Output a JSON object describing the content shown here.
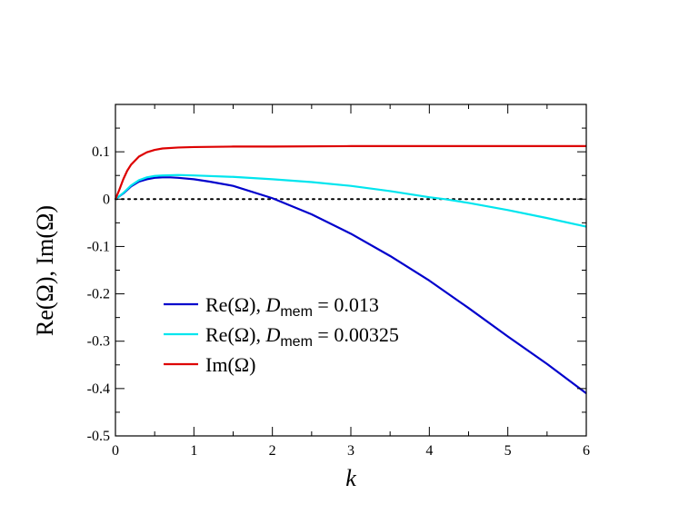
{
  "chart_data": {
    "type": "line",
    "xlabel": "k",
    "ylabel": "Re(Ω), Im(Ω)",
    "xlim": [
      0,
      6
    ],
    "ylim": [
      -0.5,
      0.2
    ],
    "x_ticks": [
      "0",
      "1",
      "2",
      "3",
      "4",
      "5",
      "6"
    ],
    "y_ticks": [
      "-0.5",
      "-0.4",
      "-0.3",
      "-0.2",
      "-0.1",
      "0",
      "0.1"
    ],
    "x_tick_values": [
      0,
      1,
      2,
      3,
      4,
      5,
      6
    ],
    "y_tick_values": [
      -0.5,
      -0.4,
      -0.3,
      -0.2,
      -0.1,
      0,
      0.1
    ],
    "grid": false,
    "legend_position": "lower-left",
    "zero_reference_line": {
      "y": 0,
      "style": "dotted",
      "color": "#000000"
    },
    "series": [
      {
        "legend_prefix": "Re(Ω), ",
        "legend_var": "D",
        "legend_sub": "mem",
        "legend_suffix": " = 0.013",
        "color": "#0000cc",
        "x": [
          0,
          0.1,
          0.2,
          0.3,
          0.4,
          0.5,
          0.6,
          0.7,
          0.8,
          1.0,
          1.2,
          1.5,
          2.0,
          2.5,
          3.0,
          3.5,
          4.0,
          4.5,
          5.0,
          5.5,
          6.0
        ],
        "y": [
          0,
          0.012,
          0.027,
          0.037,
          0.042,
          0.045,
          0.046,
          0.046,
          0.045,
          0.042,
          0.037,
          0.028,
          0.002,
          -0.032,
          -0.073,
          -0.12,
          -0.172,
          -0.23,
          -0.29,
          -0.348,
          -0.41
        ]
      },
      {
        "legend_prefix": "Re(Ω), ",
        "legend_var": "D",
        "legend_sub": "mem",
        "legend_suffix": " = 0.00325",
        "color": "#00e5ee",
        "x": [
          0,
          0.1,
          0.2,
          0.3,
          0.4,
          0.5,
          0.6,
          0.8,
          1.0,
          1.5,
          2.0,
          2.5,
          3.0,
          3.5,
          4.0,
          4.2,
          4.5,
          5.0,
          5.5,
          6.0
        ],
        "y": [
          0,
          0.013,
          0.029,
          0.04,
          0.046,
          0.049,
          0.05,
          0.051,
          0.05,
          0.047,
          0.042,
          0.036,
          0.028,
          0.017,
          0.004,
          0.0,
          -0.008,
          -0.023,
          -0.04,
          -0.058
        ]
      },
      {
        "legend_prefix": "Im(Ω)",
        "legend_var": "",
        "legend_sub": "",
        "legend_suffix": "",
        "color": "#dd0000",
        "x": [
          0,
          0.05,
          0.1,
          0.15,
          0.2,
          0.3,
          0.4,
          0.5,
          0.6,
          0.8,
          1.0,
          1.5,
          2.0,
          3.0,
          4.0,
          5.0,
          6.0
        ],
        "y": [
          0,
          0.02,
          0.042,
          0.06,
          0.073,
          0.09,
          0.099,
          0.104,
          0.107,
          0.109,
          0.11,
          0.111,
          0.111,
          0.112,
          0.112,
          0.112,
          0.112
        ]
      }
    ]
  }
}
